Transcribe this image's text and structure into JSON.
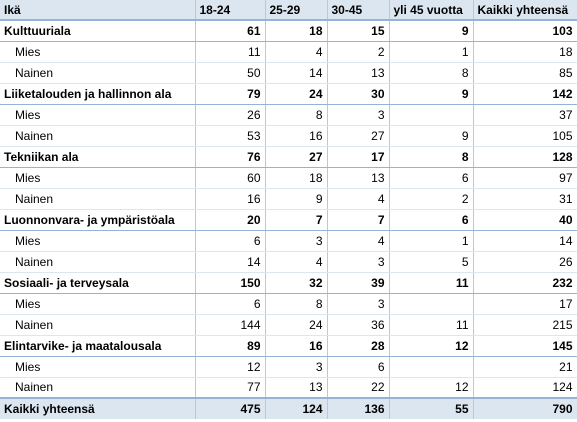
{
  "table": {
    "header": [
      "Ikä",
      "18-24",
      "25-29",
      "30-45",
      "yli 45 vuotta",
      "Kaikki yhteensä"
    ],
    "groups": [
      {
        "label": "Kulttuuriala",
        "values": [
          "61",
          "18",
          "15",
          "9",
          "103"
        ],
        "rows": [
          {
            "label": "Mies",
            "values": [
              "11",
              "4",
              "2",
              "1",
              "18"
            ]
          },
          {
            "label": "Nainen",
            "values": [
              "50",
              "14",
              "13",
              "8",
              "85"
            ]
          }
        ]
      },
      {
        "label": "Liiketalouden ja hallinnon ala",
        "values": [
          "79",
          "24",
          "30",
          "9",
          "142"
        ],
        "rows": [
          {
            "label": "Mies",
            "values": [
              "26",
              "8",
              "3",
              "",
              "37"
            ]
          },
          {
            "label": "Nainen",
            "values": [
              "53",
              "16",
              "27",
              "9",
              "105"
            ]
          }
        ]
      },
      {
        "label": "Tekniikan ala",
        "values": [
          "76",
          "27",
          "17",
          "8",
          "128"
        ],
        "rows": [
          {
            "label": "Mies",
            "values": [
              "60",
              "18",
              "13",
              "6",
              "97"
            ]
          },
          {
            "label": "Nainen",
            "values": [
              "16",
              "9",
              "4",
              "2",
              "31"
            ]
          }
        ]
      },
      {
        "label": "Luonnonvara- ja ympäristöala",
        "values": [
          "20",
          "7",
          "7",
          "6",
          "40"
        ],
        "rows": [
          {
            "label": "Mies",
            "values": [
              "6",
              "3",
              "4",
              "1",
              "14"
            ]
          },
          {
            "label": "Nainen",
            "values": [
              "14",
              "4",
              "3",
              "5",
              "26"
            ]
          }
        ]
      },
      {
        "label": "Sosiaali- ja terveysala",
        "values": [
          "150",
          "32",
          "39",
          "11",
          "232"
        ],
        "rows": [
          {
            "label": "Mies",
            "values": [
              "6",
              "8",
              "3",
              "",
              "17"
            ]
          },
          {
            "label": "Nainen",
            "values": [
              "144",
              "24",
              "36",
              "11",
              "215"
            ]
          }
        ]
      },
      {
        "label": "Elintarvike- ja maatalousala",
        "values": [
          "89",
          "16",
          "28",
          "12",
          "145"
        ],
        "rows": [
          {
            "label": "Mies",
            "values": [
              "12",
              "3",
              "6",
              "",
              "21"
            ]
          },
          {
            "label": "Nainen",
            "values": [
              "77",
              "13",
              "22",
              "12",
              "124"
            ]
          }
        ]
      }
    ],
    "total": {
      "label": "Kaikki yhteensä",
      "values": [
        "475",
        "124",
        "136",
        "55",
        "790"
      ]
    }
  }
}
